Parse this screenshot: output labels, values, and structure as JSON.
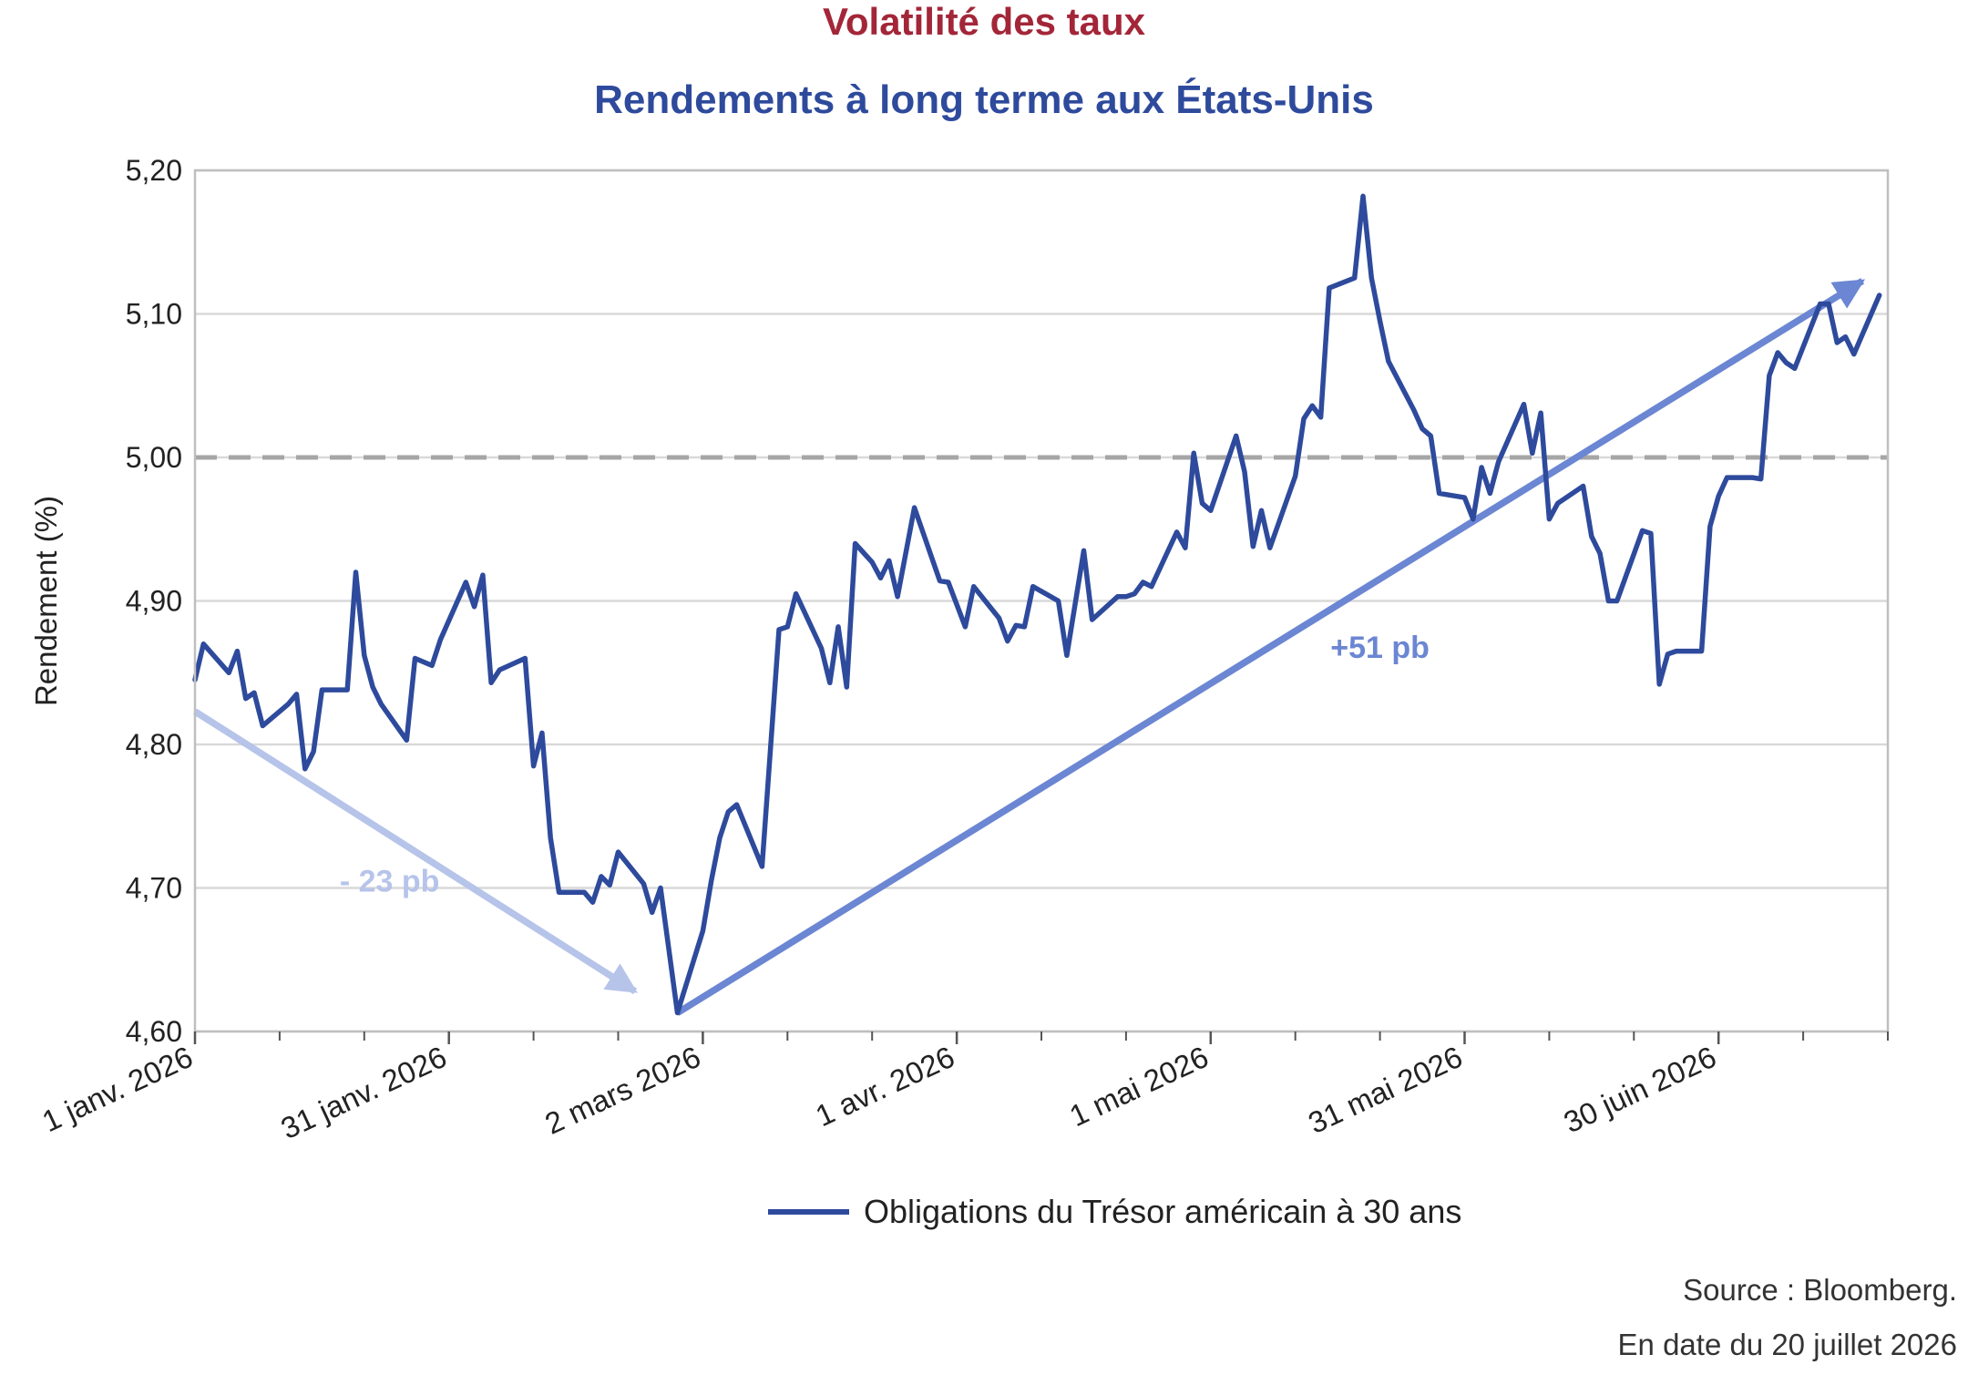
{
  "header": {
    "title": "Volatilité des taux",
    "subtitle": "Rendements à long terme aux États-Unis"
  },
  "footer": {
    "source": "Source : Bloomberg.",
    "date": "En date du 20 juillet 2026"
  },
  "colors": {
    "title": "#a32638",
    "subtitle": "#2e4a9c",
    "series": "#2e4a9c",
    "arrow_down": "#b6c4ea",
    "arrow_up": "#6b86d2",
    "reference": "#a6a6a6",
    "grid": "#d9d9d9"
  },
  "chart_data": {
    "type": "line",
    "ylabel": "Rendement (%)",
    "ylim": [
      4.6,
      5.2
    ],
    "yticks": [
      4.6,
      4.7,
      4.8,
      4.9,
      5.0,
      5.1,
      5.2
    ],
    "ytick_labels": [
      "4,60",
      "4,70",
      "4,80",
      "4,90",
      "5,00",
      "5,10",
      "5,20"
    ],
    "xlim_days": [
      0,
      200
    ],
    "xticks": [
      {
        "day": 0,
        "label": "1 janv. 2026"
      },
      {
        "day": 30,
        "label": "31 janv. 2026"
      },
      {
        "day": 60,
        "label": "2 mars 2026"
      },
      {
        "day": 90,
        "label": "1 avr. 2026"
      },
      {
        "day": 120,
        "label": "1 mai 2026"
      },
      {
        "day": 150,
        "label": "31 mai 2026"
      },
      {
        "day": 180,
        "label": "30 juin 2026"
      }
    ],
    "reference_line": {
      "y": 5.0,
      "style": "dashed"
    },
    "grid": true,
    "legend_position": "bottom",
    "series": [
      {
        "name": "Obligations du Trésor américain à 30 ans",
        "points": [
          [
            0,
            4.845
          ],
          [
            1,
            4.87
          ],
          [
            4,
            4.85
          ],
          [
            5,
            4.865
          ],
          [
            6,
            4.832
          ],
          [
            7,
            4.836
          ],
          [
            8,
            4.813
          ],
          [
            11,
            4.828
          ],
          [
            12,
            4.835
          ],
          [
            13,
            4.783
          ],
          [
            14,
            4.795
          ],
          [
            15,
            4.838
          ],
          [
            18,
            4.838
          ],
          [
            19,
            4.92
          ],
          [
            20,
            4.862
          ],
          [
            21,
            4.84
          ],
          [
            22,
            4.828
          ],
          [
            25,
            4.803
          ],
          [
            26,
            4.86
          ],
          [
            28,
            4.855
          ],
          [
            29,
            4.873
          ],
          [
            32,
            4.913
          ],
          [
            33,
            4.896
          ],
          [
            34,
            4.918
          ],
          [
            35,
            4.843
          ],
          [
            36,
            4.852
          ],
          [
            39,
            4.86
          ],
          [
            40,
            4.785
          ],
          [
            41,
            4.808
          ],
          [
            42,
            4.735
          ],
          [
            43,
            4.697
          ],
          [
            46,
            4.697
          ],
          [
            47,
            4.69
          ],
          [
            48,
            4.708
          ],
          [
            49,
            4.702
          ],
          [
            50,
            4.725
          ],
          [
            53,
            4.703
          ],
          [
            54,
            4.683
          ],
          [
            55,
            4.7
          ],
          [
            57,
            4.613
          ],
          [
            60,
            4.67
          ],
          [
            61,
            4.705
          ],
          [
            62,
            4.735
          ],
          [
            63,
            4.753
          ],
          [
            64,
            4.758
          ],
          [
            67,
            4.715
          ],
          [
            69,
            4.88
          ],
          [
            70,
            4.882
          ],
          [
            71,
            4.905
          ],
          [
            74,
            4.867
          ],
          [
            75,
            4.843
          ],
          [
            76,
            4.882
          ],
          [
            77,
            4.84
          ],
          [
            78,
            4.94
          ],
          [
            80,
            4.927
          ],
          [
            81,
            4.916
          ],
          [
            82,
            4.928
          ],
          [
            83,
            4.903
          ],
          [
            85,
            4.965
          ],
          [
            88,
            4.914
          ],
          [
            89,
            4.913
          ],
          [
            91,
            4.882
          ],
          [
            92,
            4.91
          ],
          [
            95,
            4.888
          ],
          [
            96,
            4.872
          ],
          [
            97,
            4.883
          ],
          [
            98,
            4.882
          ],
          [
            99,
            4.91
          ],
          [
            102,
            4.9
          ],
          [
            103,
            4.862
          ],
          [
            105,
            4.935
          ],
          [
            106,
            4.887
          ],
          [
            109,
            4.903
          ],
          [
            110,
            4.903
          ],
          [
            111,
            4.905
          ],
          [
            112,
            4.913
          ],
          [
            113,
            4.91
          ],
          [
            116,
            4.948
          ],
          [
            117,
            4.937
          ],
          [
            118,
            5.003
          ],
          [
            119,
            4.968
          ],
          [
            120,
            4.963
          ],
          [
            123,
            5.015
          ],
          [
            124,
            4.99
          ],
          [
            125,
            4.938
          ],
          [
            126,
            4.963
          ],
          [
            127,
            4.937
          ],
          [
            130,
            4.987
          ],
          [
            131,
            5.027
          ],
          [
            132,
            5.036
          ],
          [
            133,
            5.028
          ],
          [
            134,
            5.118
          ],
          [
            137,
            5.125
          ],
          [
            138,
            5.182
          ],
          [
            139,
            5.125
          ],
          [
            140,
            5.095
          ],
          [
            141,
            5.067
          ],
          [
            144,
            5.033
          ],
          [
            145,
            5.02
          ],
          [
            146,
            5.015
          ],
          [
            147,
            4.975
          ],
          [
            150,
            4.972
          ],
          [
            151,
            4.957
          ],
          [
            152,
            4.993
          ],
          [
            153,
            4.975
          ],
          [
            154,
            4.997
          ],
          [
            157,
            5.037
          ],
          [
            158,
            5.003
          ],
          [
            159,
            5.031
          ],
          [
            160,
            4.957
          ],
          [
            161,
            4.968
          ],
          [
            164,
            4.98
          ],
          [
            165,
            4.945
          ],
          [
            166,
            4.933
          ],
          [
            167,
            4.9
          ],
          [
            168,
            4.9
          ],
          [
            171,
            4.949
          ],
          [
            172,
            4.947
          ],
          [
            173,
            4.842
          ],
          [
            174,
            4.863
          ],
          [
            175,
            4.865
          ],
          [
            178,
            4.865
          ],
          [
            179,
            4.952
          ],
          [
            180,
            4.973
          ],
          [
            181,
            4.986
          ],
          [
            184,
            4.986
          ],
          [
            185,
            4.985
          ],
          [
            186,
            5.057
          ],
          [
            187,
            5.073
          ],
          [
            188,
            5.066
          ],
          [
            189,
            5.062
          ],
          [
            192,
            5.107
          ],
          [
            193,
            5.107
          ],
          [
            194,
            5.08
          ],
          [
            195,
            5.084
          ],
          [
            196,
            5.072
          ],
          [
            199,
            5.113
          ]
        ]
      }
    ],
    "annotations": [
      {
        "text": "- 23 pb",
        "at_day": 23,
        "at_y": 4.705,
        "from": [
          0,
          4.823
        ],
        "to": [
          52,
          4.628
        ]
      },
      {
        "text": "+51 pb",
        "at_day": 140,
        "at_y": 4.868,
        "from": [
          57,
          4.613
        ],
        "to": [
          197,
          5.123
        ]
      }
    ]
  }
}
